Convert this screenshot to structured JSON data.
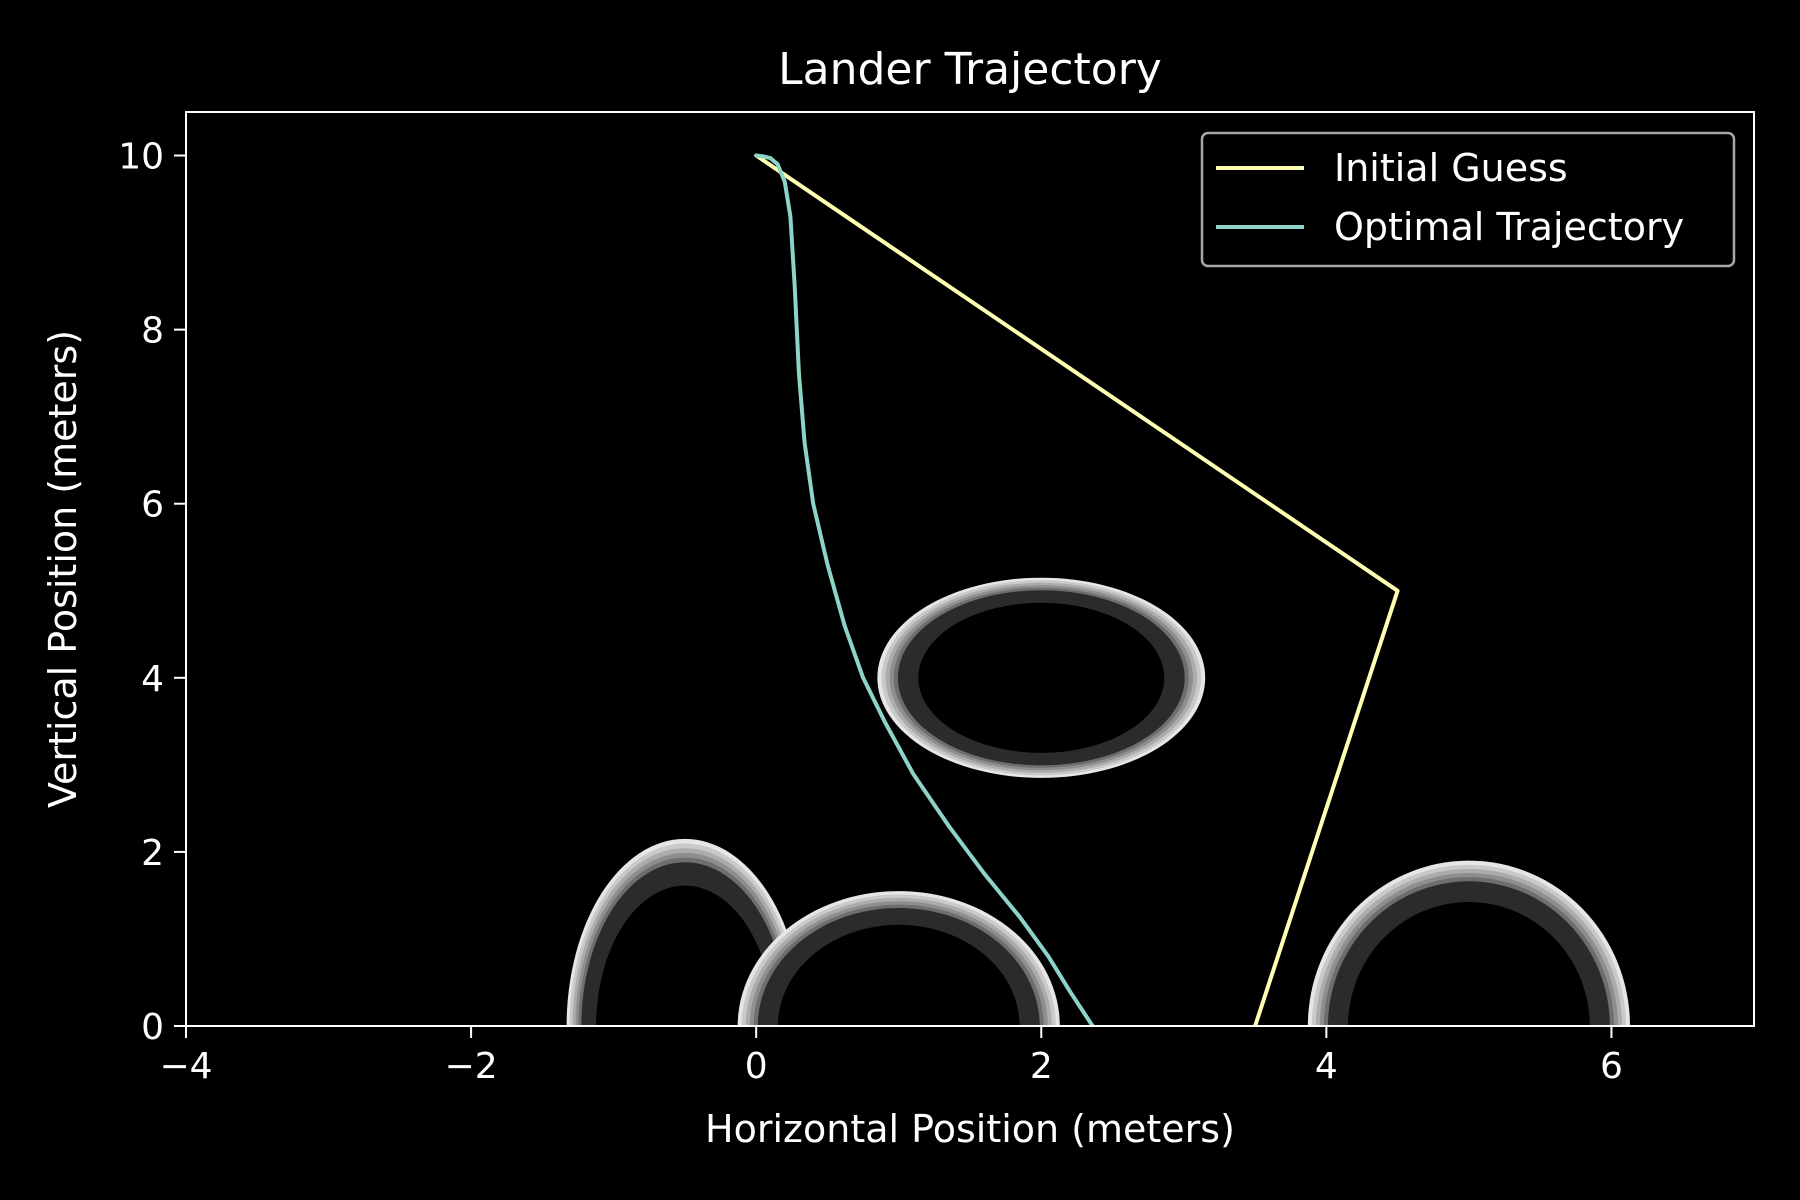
{
  "chart_data": {
    "type": "line",
    "title": "Lander Trajectory",
    "xlabel": "Horizontal Position (meters)",
    "ylabel": "Vertical Position (meters)",
    "xlim": [
      -4,
      7
    ],
    "ylim": [
      0,
      10.5
    ],
    "xticks": [
      -4,
      -2,
      0,
      2,
      4,
      6
    ],
    "yticks": [
      0,
      2,
      4,
      6,
      8,
      10
    ],
    "xtick_labels": [
      "−4",
      "−2",
      "0",
      "2",
      "4",
      "6"
    ],
    "ytick_labels": [
      "0",
      "2",
      "4",
      "6",
      "8",
      "10"
    ],
    "grid": false,
    "legend_position": "top-right",
    "background": "#000000",
    "foreground": "#ffffff",
    "series": [
      {
        "name": "Initial Guess",
        "color": "#ffffb3",
        "points": [
          [
            0,
            10
          ],
          [
            4.5,
            5
          ],
          [
            3.5,
            0
          ]
        ]
      },
      {
        "name": "Optimal Trajectory",
        "color": "#8dd3c7",
        "points": [
          [
            0,
            10
          ],
          [
            0.05,
            9.99
          ],
          [
            0.1,
            9.97
          ],
          [
            0.15,
            9.9
          ],
          [
            0.2,
            9.7
          ],
          [
            0.24,
            9.3
          ],
          [
            0.27,
            8.5
          ],
          [
            0.3,
            7.5
          ],
          [
            0.34,
            6.7
          ],
          [
            0.4,
            6.0
          ],
          [
            0.5,
            5.3
          ],
          [
            0.62,
            4.6
          ],
          [
            0.75,
            4.0
          ],
          [
            0.9,
            3.5
          ],
          [
            1.1,
            2.9
          ],
          [
            1.35,
            2.3
          ],
          [
            1.6,
            1.75
          ],
          [
            1.85,
            1.25
          ],
          [
            2.05,
            0.8
          ],
          [
            2.2,
            0.4
          ],
          [
            2.36,
            0
          ]
        ]
      }
    ],
    "obstacles": [
      {
        "cx": 2.0,
        "cy": 4.0,
        "rx": 1.15,
        "ry": 1.15,
        "dark": "#2b2b2b"
      },
      {
        "cx": -0.5,
        "cy": 0.0,
        "rx": 0.83,
        "ry": 2.15,
        "dark": "#2b2b2b"
      },
      {
        "cx": 1.0,
        "cy": 0.0,
        "rx": 1.13,
        "ry": 1.55,
        "dark": "#2b2b2b"
      },
      {
        "cx": 5.0,
        "cy": 0.0,
        "rx": 1.13,
        "ry": 1.9,
        "dark": "#2b2b2b"
      }
    ]
  }
}
